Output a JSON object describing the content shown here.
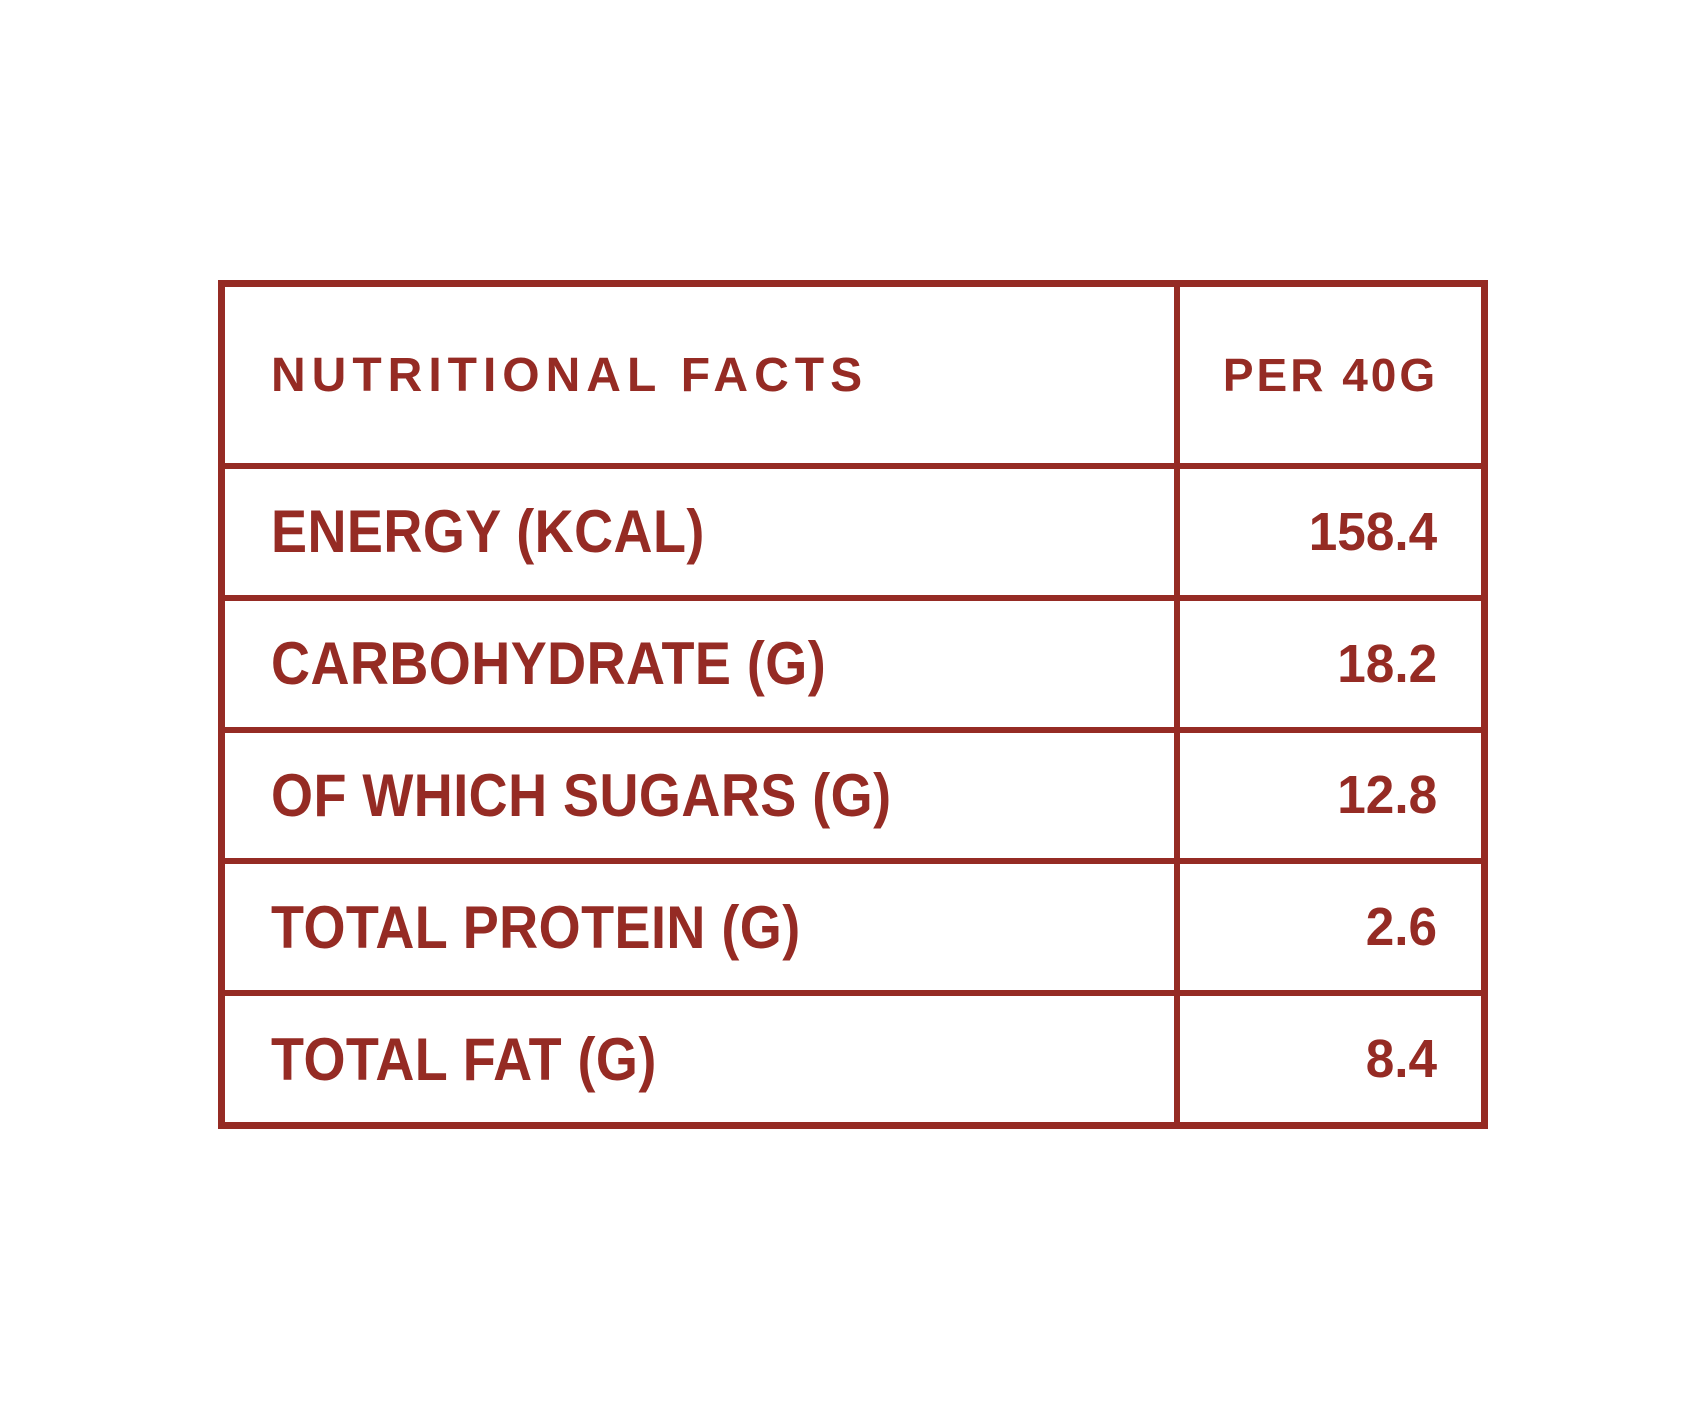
{
  "colors": {
    "accent": "#952B24",
    "background": "#FFFFFF"
  },
  "table": {
    "header": {
      "label": "NUTRITIONAL FACTS",
      "value": "PER 40G"
    },
    "rows": [
      {
        "label": "ENERGY (KCAL)",
        "value": "158.4"
      },
      {
        "label": "CARBOHYDRATE (G)",
        "value": "18.2"
      },
      {
        "label": "OF WHICH SUGARS (G)",
        "value": "12.8"
      },
      {
        "label": "TOTAL PROTEIN (G)",
        "value": "2.6"
      },
      {
        "label": "TOTAL FAT (G)",
        "value": "8.4"
      }
    ]
  }
}
